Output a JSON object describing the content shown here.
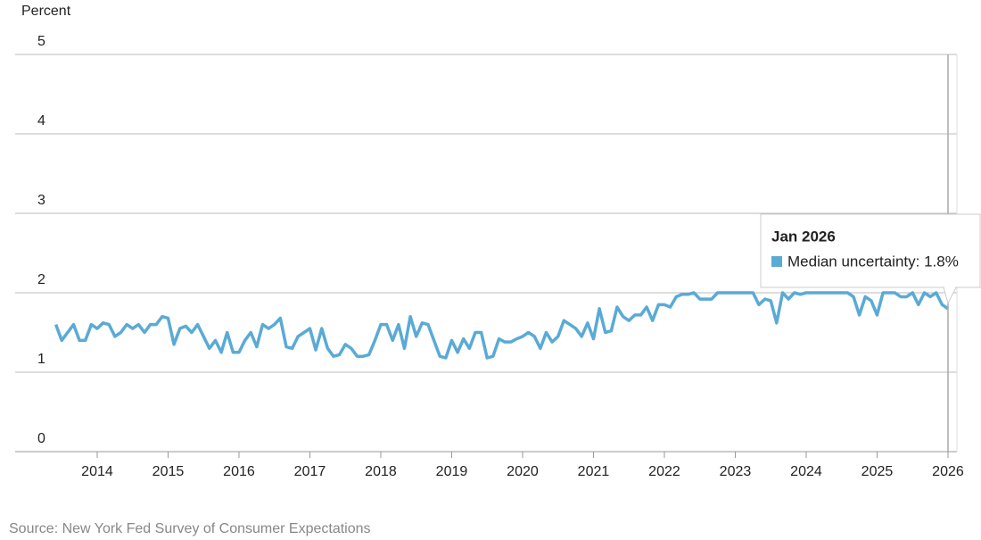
{
  "chart_data": {
    "type": "line",
    "y_label": "Percent",
    "source": "Source: New York Fed Survey of Consumer Expectations",
    "color": "#5aaad6",
    "xlim": [
      2012.843,
      2026.126
    ],
    "xticks": [
      2014,
      2015,
      2016,
      2017,
      2018,
      2019,
      2020,
      2021,
      2022,
      2023,
      2024,
      2025,
      2026
    ],
    "ylim": [
      0,
      5
    ],
    "yticks": [
      0,
      1,
      2,
      3,
      4,
      5
    ],
    "grid": true,
    "x": [
      2013.417,
      2013.5,
      2013.583,
      2013.667,
      2013.75,
      2013.833,
      2013.917,
      2014,
      2014.083,
      2014.167,
      2014.25,
      2014.333,
      2014.417,
      2014.5,
      2014.583,
      2014.667,
      2014.75,
      2014.833,
      2014.917,
      2015,
      2015.083,
      2015.167,
      2015.25,
      2015.333,
      2015.417,
      2015.5,
      2015.583,
      2015.667,
      2015.75,
      2015.833,
      2015.917,
      2016,
      2016.083,
      2016.167,
      2016.25,
      2016.333,
      2016.417,
      2016.5,
      2016.583,
      2016.667,
      2016.75,
      2016.833,
      2016.917,
      2017,
      2017.083,
      2017.167,
      2017.25,
      2017.333,
      2017.417,
      2017.5,
      2017.583,
      2017.667,
      2017.75,
      2017.833,
      2017.917,
      2018,
      2018.083,
      2018.167,
      2018.25,
      2018.333,
      2018.417,
      2018.5,
      2018.583,
      2018.667,
      2018.75,
      2018.833,
      2018.917,
      2019,
      2019.083,
      2019.167,
      2019.25,
      2019.333,
      2019.417,
      2019.5,
      2019.583,
      2019.667,
      2019.75,
      2019.833,
      2019.917,
      2020,
      2020.083,
      2020.167,
      2020.25,
      2020.333,
      2020.417,
      2020.5,
      2020.583,
      2020.667,
      2020.75,
      2020.833,
      2020.917,
      2021,
      2021.083,
      2021.167,
      2021.25,
      2021.333,
      2021.417,
      2021.5,
      2021.583,
      2021.667,
      2021.75,
      2021.833,
      2021.917,
      2022,
      2022.083,
      2022.167,
      2022.25,
      2022.333,
      2022.417,
      2022.5,
      2022.583,
      2022.667,
      2022.75,
      2022.833,
      2022.917,
      2023,
      2023.083,
      2023.167,
      2023.25,
      2023.333,
      2023.417,
      2023.5,
      2023.583,
      2023.667,
      2023.75,
      2023.833,
      2023.917,
      2024,
      2024.083,
      2024.167,
      2024.25,
      2024.333,
      2024.417,
      2024.5,
      2024.583,
      2024.667,
      2024.75,
      2024.833,
      2024.917,
      2025,
      2025.083,
      2025.167,
      2025.25,
      2025.333,
      2025.417,
      2025.5,
      2025.583,
      2025.667,
      2025.75,
      2025.833,
      2025.917,
      2026
    ],
    "values": [
      1.6,
      1.4,
      1.5,
      1.6,
      1.4,
      1.4,
      1.6,
      1.55,
      1.62,
      1.6,
      1.45,
      1.5,
      1.6,
      1.55,
      1.6,
      1.5,
      1.6,
      1.6,
      1.7,
      1.68,
      1.35,
      1.55,
      1.58,
      1.5,
      1.6,
      1.45,
      1.3,
      1.4,
      1.25,
      1.5,
      1.25,
      1.25,
      1.4,
      1.5,
      1.32,
      1.6,
      1.55,
      1.6,
      1.68,
      1.32,
      1.3,
      1.45,
      1.5,
      1.55,
      1.28,
      1.55,
      1.3,
      1.2,
      1.22,
      1.35,
      1.3,
      1.2,
      1.2,
      1.22,
      1.4,
      1.6,
      1.6,
      1.4,
      1.6,
      1.3,
      1.7,
      1.45,
      1.62,
      1.6,
      1.4,
      1.2,
      1.18,
      1.4,
      1.25,
      1.42,
      1.3,
      1.5,
      1.5,
      1.18,
      1.2,
      1.42,
      1.38,
      1.38,
      1.42,
      1.45,
      1.5,
      1.45,
      1.3,
      1.5,
      1.38,
      1.45,
      1.65,
      1.6,
      1.55,
      1.45,
      1.62,
      1.42,
      1.8,
      1.5,
      1.52,
      1.82,
      1.7,
      1.65,
      1.72,
      1.72,
      1.82,
      1.65,
      1.85,
      1.85,
      1.82,
      1.95,
      1.98,
      1.98,
      2.0,
      1.92,
      1.92,
      1.92,
      2.0,
      2.0,
      2.0,
      2.0,
      2.0,
      2.0,
      2.0,
      1.85,
      1.92,
      1.9,
      1.62,
      2.0,
      1.92,
      2.0,
      1.98,
      2.0,
      2.0,
      2.0,
      2.0,
      2.0,
      2.0,
      2.0,
      2.0,
      1.95,
      1.72,
      1.95,
      1.9,
      1.72,
      2.0,
      2.0,
      2.0,
      1.95,
      1.95,
      2.0,
      1.85,
      2.0,
      1.95,
      2.0,
      1.85,
      1.8
    ],
    "tooltip": {
      "title": "Jan 2026",
      "text": "Median uncertainty: 1.8%"
    }
  }
}
